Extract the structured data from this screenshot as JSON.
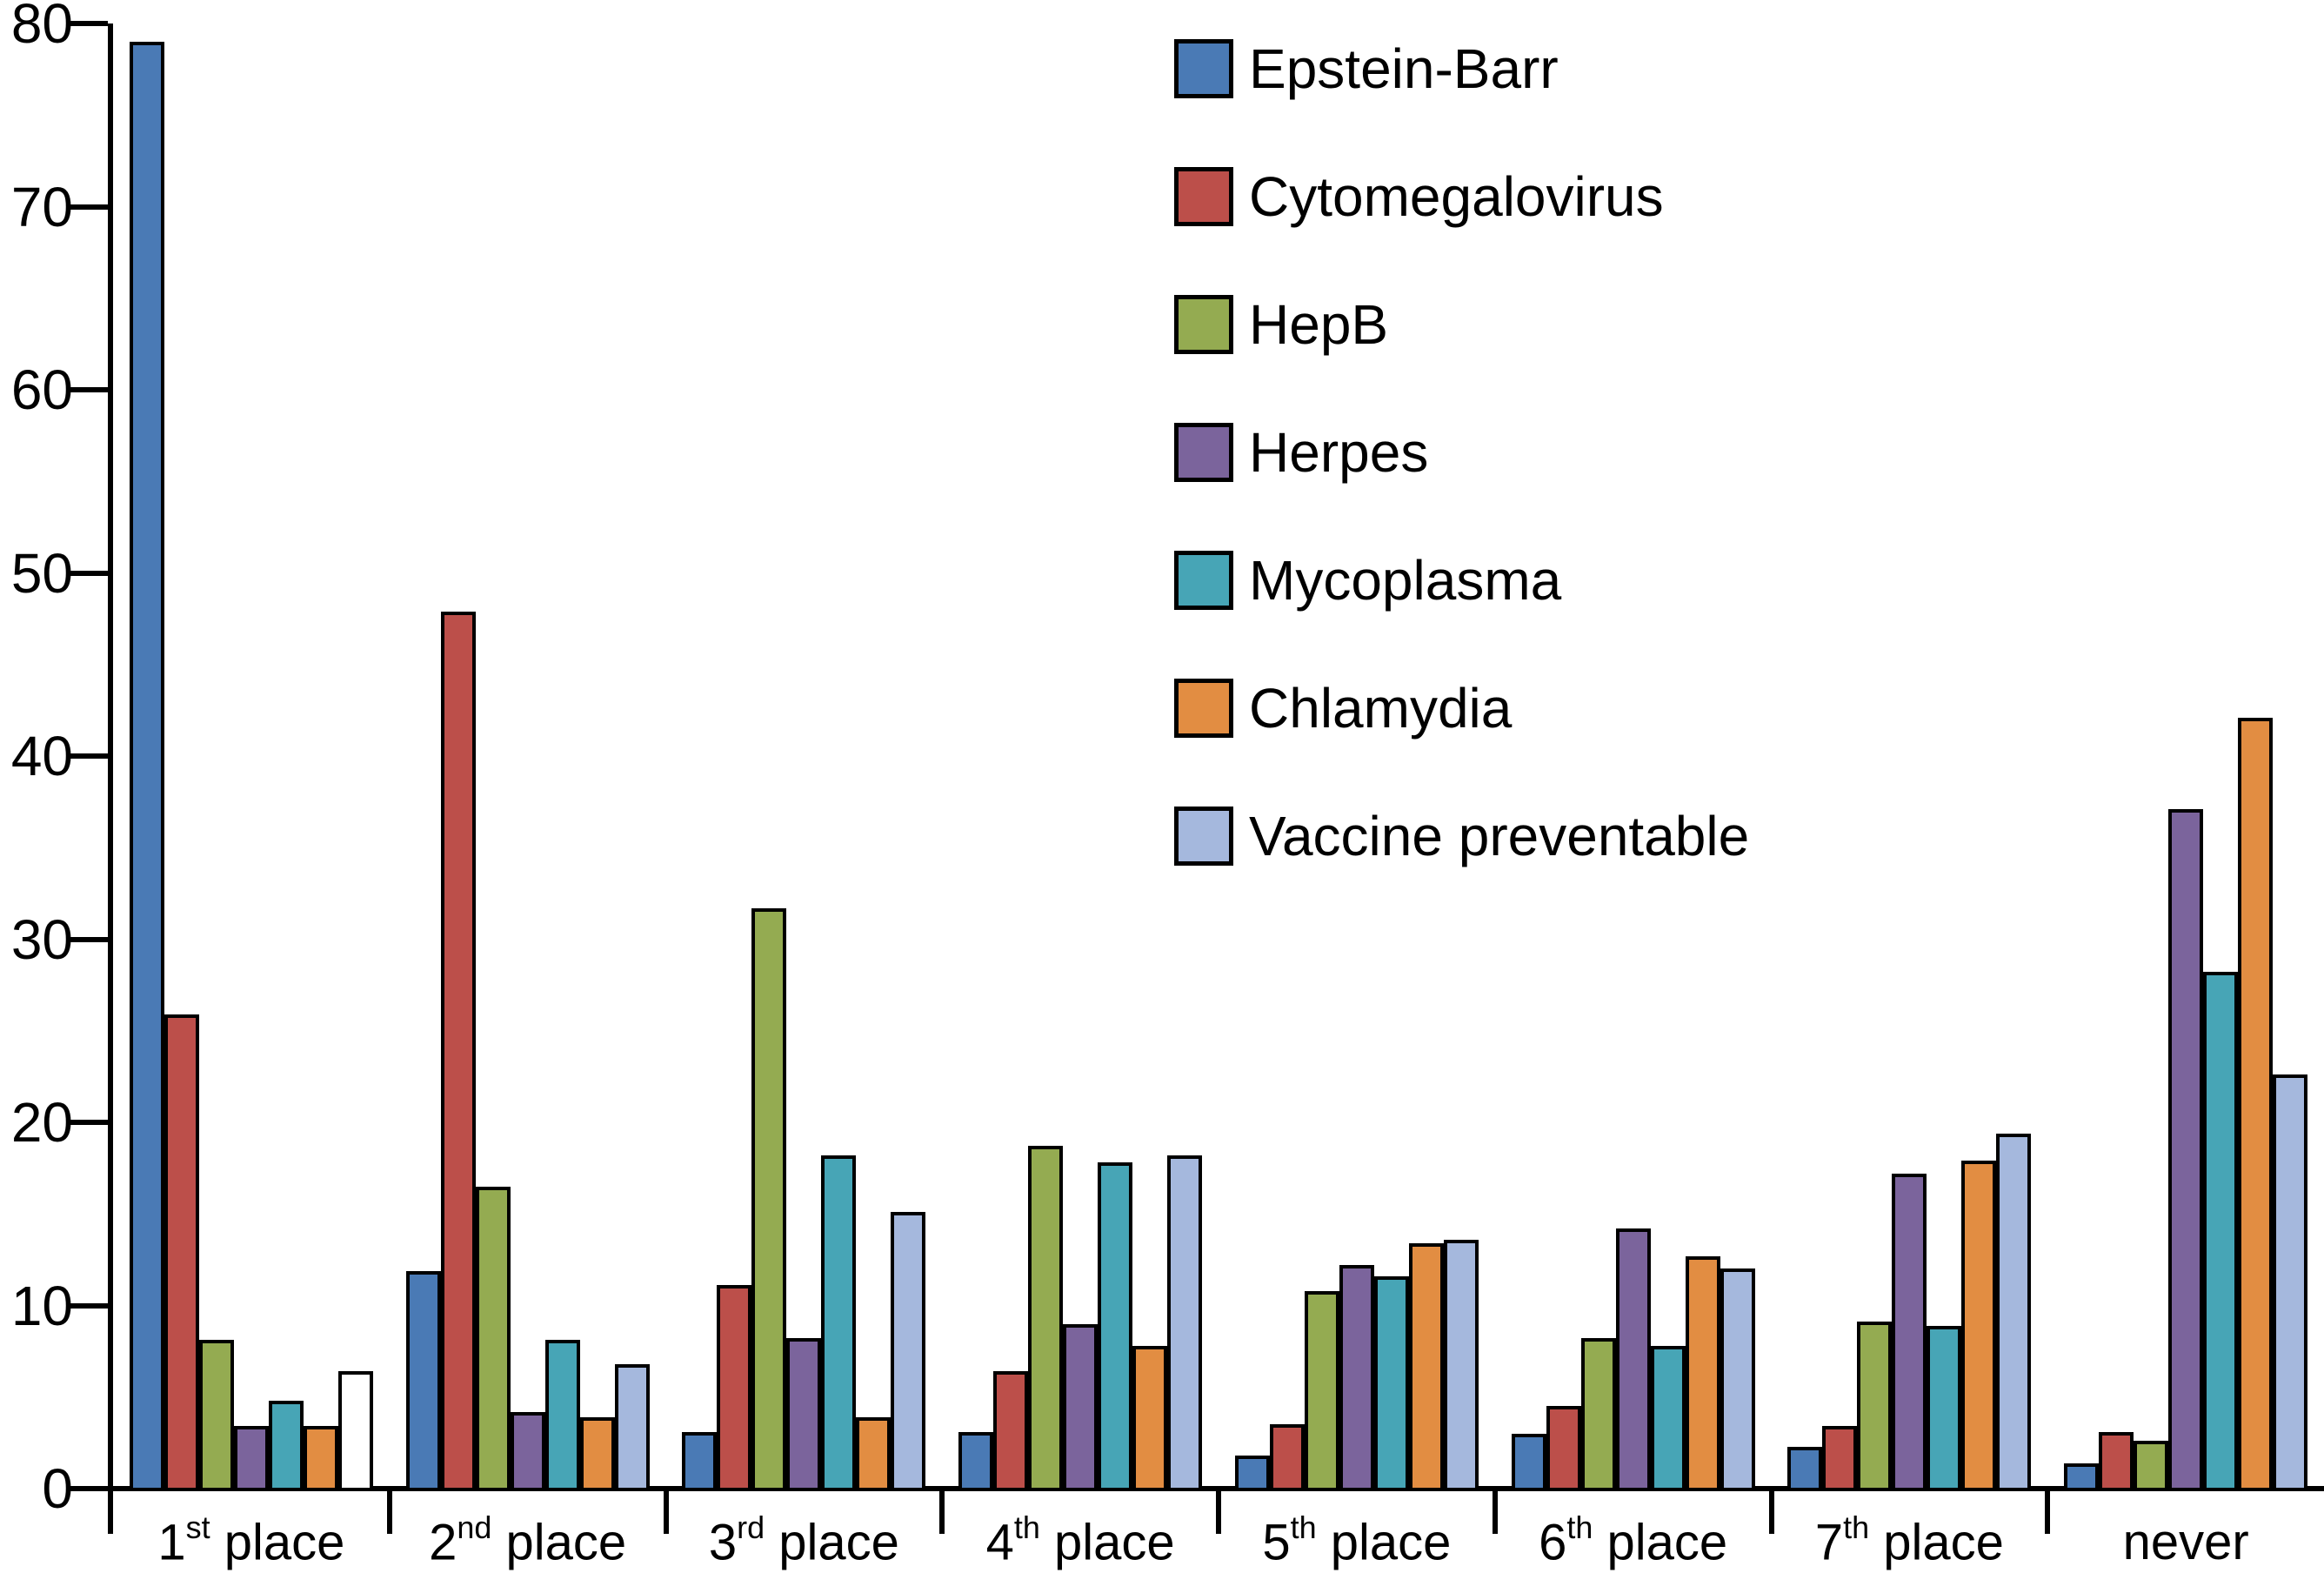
{
  "chart_data": {
    "type": "bar",
    "title": "",
    "xlabel": "",
    "ylabel": "",
    "ylim": [
      0,
      80
    ],
    "yticks": [
      0,
      10,
      20,
      30,
      40,
      50,
      60,
      70,
      80
    ],
    "grid": false,
    "legend_position": "upper-center, vertical list",
    "categories": [
      "1st place",
      "2nd place",
      "3rd place",
      "4th place",
      "5th place",
      "6th place",
      "7th place",
      "never"
    ],
    "category_parts": [
      {
        "base": "1",
        "sup": "st",
        "rest": " place"
      },
      {
        "base": "2",
        "sup": "nd",
        "rest": " place"
      },
      {
        "base": "3",
        "sup": "rd",
        "rest": " place"
      },
      {
        "base": "4",
        "sup": "th",
        "rest": " place"
      },
      {
        "base": "5",
        "sup": "th",
        "rest": " place"
      },
      {
        "base": "6",
        "sup": "th",
        "rest": " place"
      },
      {
        "base": "7",
        "sup": "th",
        "rest": " place"
      },
      {
        "base": "never",
        "sup": "",
        "rest": ""
      }
    ],
    "series": [
      {
        "name": "Epstein-Barr",
        "color": "#4a7ab5",
        "values": [
          79.0,
          11.9,
          3.1,
          3.1,
          1.8,
          3.0,
          2.3,
          1.4
        ]
      },
      {
        "name": "Cytomegalovirus",
        "color": "#bc4f4a",
        "values": [
          25.9,
          47.9,
          11.1,
          6.4,
          3.5,
          4.5,
          3.4,
          3.1
        ]
      },
      {
        "name": "HepB",
        "color": "#94ab51",
        "values": [
          8.1,
          16.5,
          31.7,
          18.7,
          10.8,
          8.2,
          9.1,
          2.6
        ]
      },
      {
        "name": "Herpes",
        "color": "#7b649c",
        "values": [
          3.4,
          4.2,
          8.2,
          9.0,
          12.2,
          14.2,
          17.2,
          37.1
        ]
      },
      {
        "name": "Mycoplasma",
        "color": "#47a5b6",
        "values": [
          4.8,
          8.1,
          18.2,
          17.8,
          11.6,
          7.8,
          8.9,
          28.2
        ]
      },
      {
        "name": "Chlamydia",
        "color": "#e28d42",
        "values": [
          3.4,
          3.9,
          3.9,
          7.8,
          13.4,
          12.7,
          17.9,
          42.1
        ]
      },
      {
        "name": "Vaccine preventable",
        "color": "#a5b8dd",
        "values": [
          6.4,
          6.8,
          15.1,
          18.2,
          13.6,
          12.0,
          19.4,
          22.6
        ]
      }
    ],
    "special_bars": [
      {
        "series_index": 6,
        "category_index": 0,
        "fill": "#ffffff",
        "note": "vaccine-preventable bar in 1st place group drawn unfilled (white)"
      }
    ],
    "axis_color": "#000000",
    "bar_outline_color": "#000000"
  }
}
